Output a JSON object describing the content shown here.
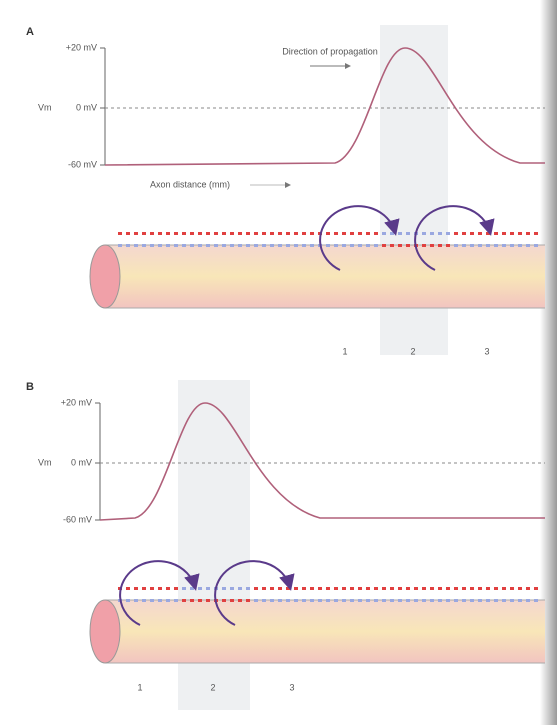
{
  "panels": [
    {
      "label": "A",
      "y_axis_label": "Vm",
      "y_tick_labels": [
        "+20 mV",
        "0 mV",
        "-60 mV"
      ],
      "annotation": "Direction of propagation",
      "x_axis_label": "Axon distance (mm)",
      "regions": [
        "1",
        "2",
        "3"
      ]
    },
    {
      "label": "B",
      "y_axis_label": "Vm",
      "y_tick_labels": [
        "+20 mV",
        "0 mV",
        "-60 mV"
      ],
      "regions": [
        "1",
        "2",
        "3"
      ]
    }
  ]
}
